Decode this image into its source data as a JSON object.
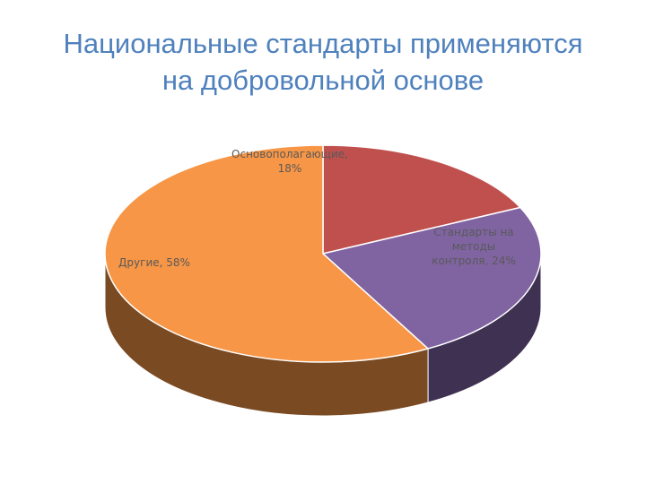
{
  "title_lines": [
    "Национальные стандарты применяются",
    "на добровольной основе"
  ],
  "chart_data": {
    "type": "pie",
    "title": "Национальные стандарты применяются на добровольной основе",
    "three_d": true,
    "legend": "none",
    "slices": [
      {
        "label_lines": [
          "Основополагающие,",
          "18%"
        ],
        "value": 18,
        "color": "#c0504d",
        "side_color": "#7a2f2e"
      },
      {
        "label_lines": [
          "Стандарты на",
          "методы",
          "контроля, 24%"
        ],
        "value": 24,
        "color": "#8064a2",
        "side_color": "#3f3151"
      },
      {
        "label_lines": [
          "Другие, 58%"
        ],
        "value": 58,
        "color": "#f79646",
        "side_color": "#7a4a22"
      }
    ]
  }
}
